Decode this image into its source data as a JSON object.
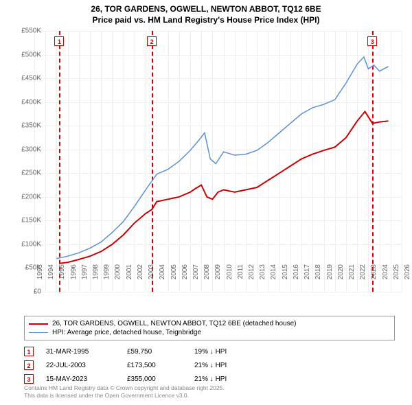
{
  "title_line1": "26, TOR GARDENS, OGWELL, NEWTON ABBOT, TQ12 6BE",
  "title_line2": "Price paid vs. HM Land Registry's House Price Index (HPI)",
  "chart": {
    "type": "line",
    "background_color": "#ffffff",
    "grid_color": "#eeeeee",
    "axis_font_size": 10,
    "y": {
      "min": 0,
      "max": 550000,
      "step": 50000,
      "format_prefix": "£",
      "format_suffix": "K",
      "format_div": 1000
    },
    "x": {
      "min": 1993,
      "max": 2026,
      "step": 1
    },
    "series": [
      {
        "id": "price-paid",
        "label": "26, TOR GARDENS, OGWELL, NEWTON ABBOT, TQ12 6BE (detached house)",
        "color": "#cc0000",
        "width": 2,
        "points": [
          [
            1995.25,
            59750
          ],
          [
            1996,
            62000
          ],
          [
            1997,
            68000
          ],
          [
            1998,
            75000
          ],
          [
            1999,
            85000
          ],
          [
            2000,
            100000
          ],
          [
            2001,
            120000
          ],
          [
            2002,
            145000
          ],
          [
            2003,
            165000
          ],
          [
            2003.56,
            173500
          ],
          [
            2004,
            190000
          ],
          [
            2005,
            195000
          ],
          [
            2006,
            200000
          ],
          [
            2007,
            210000
          ],
          [
            2007.5,
            218000
          ],
          [
            2008,
            225000
          ],
          [
            2008.5,
            200000
          ],
          [
            2009,
            195000
          ],
          [
            2009.5,
            210000
          ],
          [
            2010,
            215000
          ],
          [
            2011,
            210000
          ],
          [
            2012,
            215000
          ],
          [
            2013,
            220000
          ],
          [
            2014,
            235000
          ],
          [
            2015,
            250000
          ],
          [
            2016,
            265000
          ],
          [
            2017,
            280000
          ],
          [
            2018,
            290000
          ],
          [
            2019,
            298000
          ],
          [
            2020,
            305000
          ],
          [
            2021,
            325000
          ],
          [
            2022,
            360000
          ],
          [
            2022.7,
            380000
          ],
          [
            2023.37,
            355000
          ],
          [
            2024,
            358000
          ],
          [
            2024.8,
            360000
          ]
        ]
      },
      {
        "id": "hpi",
        "label": "HPI: Average price, detached house, Teignbridge",
        "color": "#5b8fd6",
        "width": 1.5,
        "points": [
          [
            1995,
            70000
          ],
          [
            1996,
            75000
          ],
          [
            1997,
            82000
          ],
          [
            1998,
            92000
          ],
          [
            1999,
            105000
          ],
          [
            2000,
            125000
          ],
          [
            2001,
            148000
          ],
          [
            2002,
            180000
          ],
          [
            2003,
            215000
          ],
          [
            2004,
            248000
          ],
          [
            2005,
            258000
          ],
          [
            2006,
            275000
          ],
          [
            2007,
            298000
          ],
          [
            2007.8,
            320000
          ],
          [
            2008.3,
            335000
          ],
          [
            2008.8,
            280000
          ],
          [
            2009.3,
            270000
          ],
          [
            2010,
            295000
          ],
          [
            2011,
            288000
          ],
          [
            2012,
            290000
          ],
          [
            2013,
            298000
          ],
          [
            2014,
            315000
          ],
          [
            2015,
            335000
          ],
          [
            2016,
            355000
          ],
          [
            2017,
            375000
          ],
          [
            2018,
            388000
          ],
          [
            2019,
            395000
          ],
          [
            2020,
            405000
          ],
          [
            2021,
            440000
          ],
          [
            2022,
            480000
          ],
          [
            2022.6,
            495000
          ],
          [
            2023,
            470000
          ],
          [
            2023.5,
            478000
          ],
          [
            2024,
            465000
          ],
          [
            2024.8,
            475000
          ]
        ]
      }
    ],
    "markers": [
      {
        "num": "1",
        "x": 1995.25,
        "color": "#cc0000"
      },
      {
        "num": "2",
        "x": 2003.56,
        "color": "#cc0000"
      },
      {
        "num": "3",
        "x": 2023.37,
        "color": "#cc0000"
      }
    ]
  },
  "sales": [
    {
      "num": "1",
      "date": "31-MAR-1995",
      "price": "£59,750",
      "diff": "19% ↓ HPI"
    },
    {
      "num": "2",
      "date": "22-JUL-2003",
      "price": "£173,500",
      "diff": "21% ↓ HPI"
    },
    {
      "num": "3",
      "date": "15-MAY-2023",
      "price": "£355,000",
      "diff": "21% ↓ HPI"
    }
  ],
  "footer_line1": "Contains HM Land Registry data © Crown copyright and database right 2025.",
  "footer_line2": "This data is licensed under the Open Government Licence v3.0."
}
